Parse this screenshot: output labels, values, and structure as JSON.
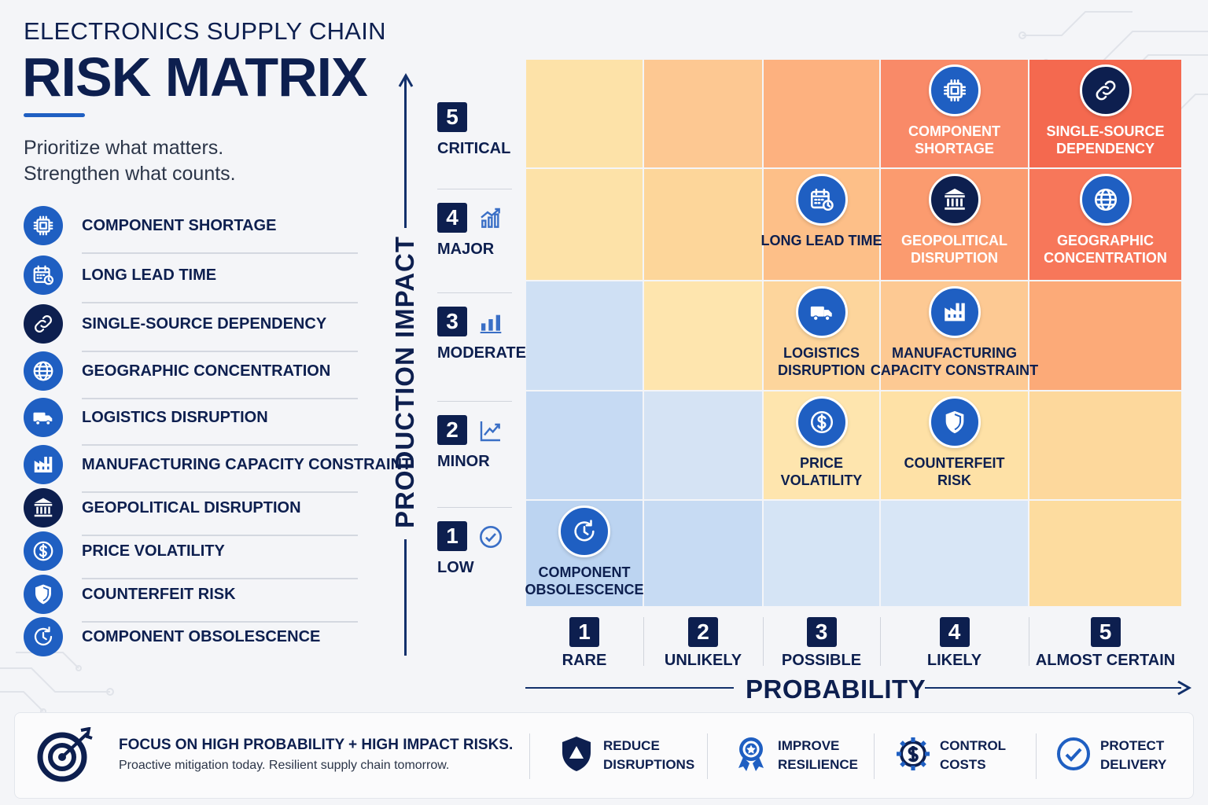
{
  "header": {
    "subtitle": "ELECTRONICS SUPPLY CHAIN",
    "title": "RISK MATRIX",
    "tagline_line1": "Prioritize what matters.",
    "tagline_line2": "Strengthen what counts."
  },
  "legend": [
    {
      "label": "COMPONENT SHORTAGE",
      "icon": "chip-icon",
      "style": "blue"
    },
    {
      "label": "LONG LEAD TIME",
      "icon": "calendar-clock-icon",
      "style": "blue"
    },
    {
      "label": "SINGLE-SOURCE DEPENDENCY",
      "icon": "link-icon",
      "style": "navy"
    },
    {
      "label": "GEOGRAPHIC CONCENTRATION",
      "icon": "globe-icon",
      "style": "blue"
    },
    {
      "label": "LOGISTICS DISRUPTION",
      "icon": "truck-icon",
      "style": "blue"
    },
    {
      "label": "MANUFACTURING CAPACITY CONSTRAINT",
      "icon": "factory-icon",
      "style": "blue"
    },
    {
      "label": "GEOPOLITICAL DISRUPTION",
      "icon": "government-building-icon",
      "style": "navy"
    },
    {
      "label": "PRICE VOLATILITY",
      "icon": "dollar-icon",
      "style": "blue"
    },
    {
      "label": "COUNTERFEIT RISK",
      "icon": "shield-icon",
      "style": "blue"
    },
    {
      "label": "COMPONENT OBSOLESCENCE",
      "icon": "clock-refresh-icon",
      "style": "blue"
    }
  ],
  "y_axis": {
    "title": "PRODUCTION IMPACT",
    "levels": [
      {
        "num": "5",
        "label": "CRITICAL",
        "icon": ""
      },
      {
        "num": "4",
        "label": "MAJOR",
        "icon": "trend-up-bars-icon"
      },
      {
        "num": "3",
        "label": "MODERATE",
        "icon": "bar-chart-icon"
      },
      {
        "num": "2",
        "label": "MINOR",
        "icon": "line-chart-icon"
      },
      {
        "num": "1",
        "label": "LOW",
        "icon": "check-circle-icon"
      }
    ]
  },
  "x_axis": {
    "title": "PROBABILITY",
    "levels": [
      {
        "num": "1",
        "label": "RARE"
      },
      {
        "num": "2",
        "label": "UNLIKELY"
      },
      {
        "num": "3",
        "label": "POSSIBLE"
      },
      {
        "num": "4",
        "label": "LIKELY"
      },
      {
        "num": "5",
        "label": "ALMOST CERTAIN"
      }
    ]
  },
  "matrix": {
    "cell_colors": [
      [
        "#fde2a8",
        "#fdc892",
        "#fdb17f",
        "#f98a68",
        "#f4694f"
      ],
      [
        "#fde2a8",
        "#fdd69a",
        "#fdbf88",
        "#fb9b6f",
        "#f7775a"
      ],
      [
        "#cfe0f4",
        "#fee5ae",
        "#fdd59c",
        "#fdc993",
        "#fcaa78"
      ],
      [
        "#c6daf3",
        "#d5e3f4",
        "#fee5ae",
        "#fee1a6",
        "#fdd89c"
      ],
      [
        "#bcd4f1",
        "#c7dbf3",
        "#d5e4f5",
        "#d8e6f6",
        "#fddc9f"
      ]
    ],
    "risks": [
      {
        "label": "COMPONENT\nSHORTAGE",
        "impact": 5,
        "probability": 4,
        "icon": "chip-icon",
        "style": "blue",
        "text": "light"
      },
      {
        "label": "SINGLE-SOURCE\nDEPENDENCY",
        "impact": 5,
        "probability": 5,
        "icon": "link-icon",
        "style": "navy",
        "text": "light"
      },
      {
        "label": "LONG LEAD TIME",
        "impact": 4,
        "probability": 3,
        "icon": "calendar-clock-icon",
        "style": "blue",
        "text": "dark"
      },
      {
        "label": "GEOPOLITICAL\nDISRUPTION",
        "impact": 4,
        "probability": 4,
        "icon": "government-building-icon",
        "style": "navy",
        "text": "light"
      },
      {
        "label": "GEOGRAPHIC\nCONCENTRATION",
        "impact": 4,
        "probability": 5,
        "icon": "globe-icon",
        "style": "blue",
        "text": "light"
      },
      {
        "label": "LOGISTICS\nDISRUPTION",
        "impact": 3,
        "probability": 3,
        "icon": "truck-icon",
        "style": "blue",
        "text": "dark"
      },
      {
        "label": "MANUFACTURING\nCAPACITY CONSTRAINT",
        "impact": 3,
        "probability": 4,
        "icon": "factory-icon",
        "style": "blue",
        "text": "dark"
      },
      {
        "label": "PRICE\nVOLATILITY",
        "impact": 2,
        "probability": 3,
        "icon": "dollar-icon",
        "style": "blue",
        "text": "dark"
      },
      {
        "label": "COUNTERFEIT\nRISK",
        "impact": 2,
        "probability": 4,
        "icon": "shield-icon",
        "style": "blue",
        "text": "dark"
      },
      {
        "label": "COMPONENT\nOBSOLESCENCE",
        "impact": 1,
        "probability": 1,
        "icon": "clock-refresh-icon",
        "style": "blue",
        "text": "dark"
      }
    ]
  },
  "footer": {
    "main_title": "FOCUS ON HIGH PROBABILITY + HIGH IMPACT RISKS.",
    "main_sub": "Proactive mitigation today. Resilient supply chain tomorrow.",
    "main_icon": "target-icon",
    "items": [
      {
        "label": "REDUCE\nDISRUPTIONS",
        "icon": "shield-warning-icon"
      },
      {
        "label": "IMPROVE\nRESILIENCE",
        "icon": "award-badge-icon"
      },
      {
        "label": "CONTROL\nCOSTS",
        "icon": "gear-dollar-icon"
      },
      {
        "label": "PROTECT\nDELIVERY",
        "icon": "check-circle-icon"
      }
    ]
  },
  "colors": {
    "navy": "#0d1f4f",
    "blue": "#1f5fc2",
    "axis": "#12306b"
  }
}
